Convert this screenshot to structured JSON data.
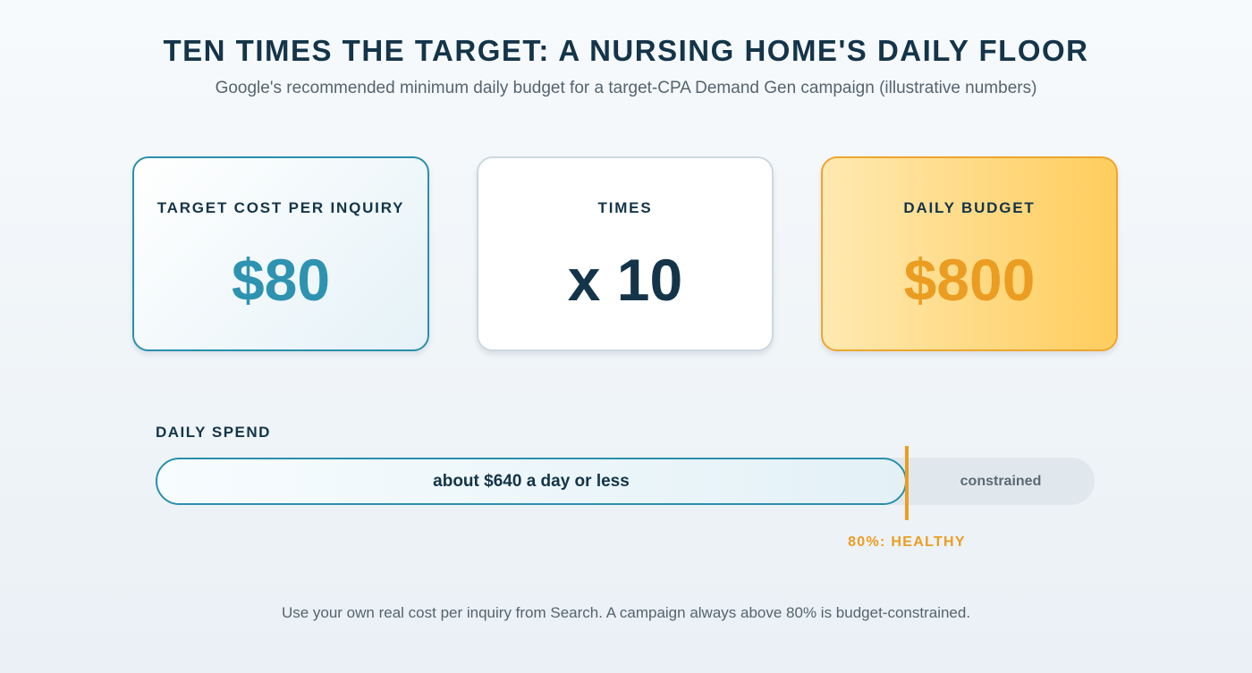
{
  "header": {
    "title": "TEN TIMES THE TARGET: A NURSING HOME'S DAILY FLOOR",
    "subtitle": "Google's recommended minimum daily budget for a target-CPA Demand Gen campaign (illustrative numbers)"
  },
  "cards": {
    "target": {
      "label": "TARGET COST PER INQUIRY",
      "value": "$80"
    },
    "times": {
      "label": "TIMES",
      "value": "x 10"
    },
    "budget": {
      "label": "DAILY BUDGET",
      "value": "$800"
    }
  },
  "spend": {
    "label": "DAILY SPEND",
    "bar_text": "about $640 a day or less",
    "constrained_text": "constrained",
    "marker_label": "80%: HEALTHY",
    "marker_fraction": 0.8
  },
  "footnote": "Use your own real cost per inquiry from Search. A campaign always above 80% is budget-constrained.",
  "colors": {
    "accent_teal": "#2e93b1",
    "accent_orange": "#eb9d22",
    "text_dark": "#143449"
  }
}
